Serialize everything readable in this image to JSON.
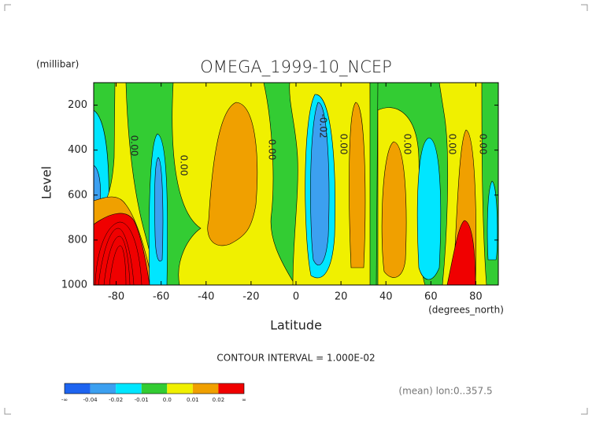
{
  "chart_data": {
    "type": "contour",
    "title": "OMEGA_1999-10_NCEP",
    "y_unit": "(millibar)",
    "y_label": "Level",
    "x_label": "Latitude",
    "x_unit": "(degrees_north)",
    "xlim": [
      -90,
      90
    ],
    "xticks": [
      -80,
      -60,
      -40,
      -20,
      0,
      20,
      40,
      60,
      80
    ],
    "ylim": [
      1000,
      100
    ],
    "yticks": [
      200,
      400,
      600,
      800,
      1000
    ],
    "contour_labels": [
      {
        "value": 0,
        "label": "0.00"
      },
      {
        "value": 0,
        "label": "0.00"
      },
      {
        "value": 0,
        "label": "0.00"
      },
      {
        "value": -0.02,
        "label": "-0.02"
      },
      {
        "value": 0,
        "label": "0.00"
      },
      {
        "value": 0,
        "label": "0.00"
      },
      {
        "value": 0,
        "label": "0.00"
      },
      {
        "value": 0,
        "label": "0.00"
      }
    ],
    "annotation": "CONTOUR INTERVAL = 1.000E-02",
    "footnote": "(mean) lon:0..357.5",
    "colorbar": {
      "labels": [
        "-∞",
        "-0.04",
        "-0.02",
        "-0.01",
        "0.0",
        "0.01",
        "0.02",
        "∞"
      ],
      "colors": [
        "#1e64f0",
        "#3ca0f0",
        "#00e6ff",
        "#33cc33",
        "#f0f000",
        "#f0a000",
        "#f00000"
      ]
    }
  }
}
